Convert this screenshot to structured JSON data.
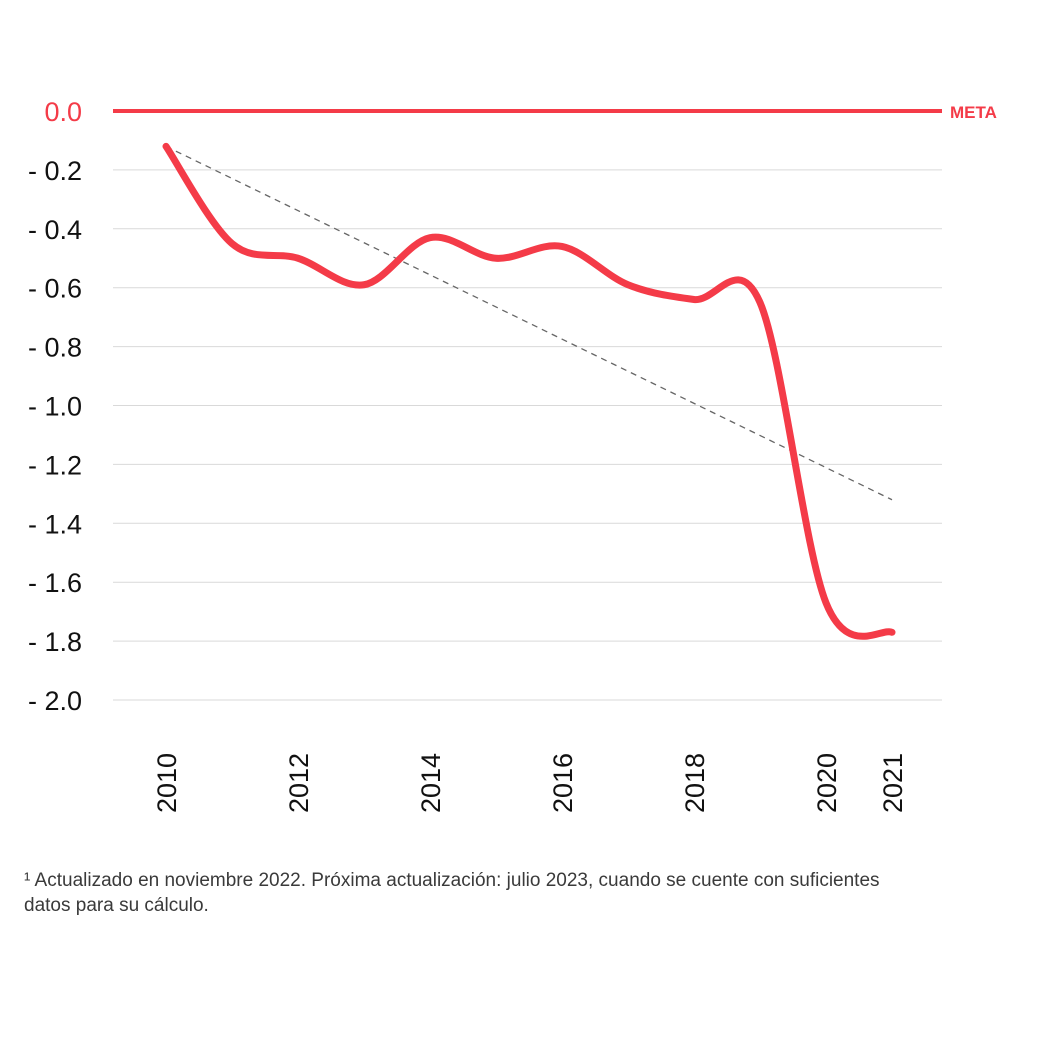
{
  "chart_data": {
    "type": "line",
    "title": "",
    "xlabel": "",
    "ylabel": "",
    "ylim": [
      -2.0,
      0.0
    ],
    "yticks": [
      0.0,
      -0.2,
      -0.4,
      -0.6,
      -0.8,
      -1.0,
      -1.2,
      -1.4,
      -1.6,
      -1.8,
      -2.0
    ],
    "ytick_labels": [
      "0.0",
      "- 0.2",
      "- 0.4",
      "- 0.6",
      "- 0.8",
      "- 1.0",
      "- 1.2",
      "- 1.4",
      "- 1.6",
      "- 1.8",
      "- 2.0"
    ],
    "xticks": [
      2010,
      2012,
      2014,
      2016,
      2018,
      2020,
      2021
    ],
    "xtick_labels": [
      "2010",
      "2012",
      "2014",
      "2016",
      "2018",
      "2020",
      "2021"
    ],
    "grid": true,
    "series": [
      {
        "values": [
          {
            "x": 2010,
            "y": -0.12
          },
          {
            "x": 2011,
            "y": -0.45
          },
          {
            "x": 2012,
            "y": -0.5
          },
          {
            "x": 2013,
            "y": -0.59
          },
          {
            "x": 2014,
            "y": -0.43
          },
          {
            "x": 2015,
            "y": -0.5
          },
          {
            "x": 2016,
            "y": -0.46
          },
          {
            "x": 2017,
            "y": -0.59
          },
          {
            "x": 2018,
            "y": -0.64
          },
          {
            "x": 2019,
            "y": -0.65
          },
          {
            "x": 2020,
            "y": -1.67
          },
          {
            "x": 2021,
            "y": -1.77
          }
        ],
        "color": "#f43b48"
      }
    ],
    "trendline": {
      "start": {
        "x": 2010,
        "y": -0.12
      },
      "end": {
        "x": 2021,
        "y": -1.32
      },
      "color": "#666666",
      "style": "dashed"
    },
    "target_line": {
      "y": 0.0,
      "label": "META",
      "color": "#f43b48"
    }
  },
  "footnote": "¹ Actualizado en noviembre 2022. Próxima actualización: julio 2023, cuando se cuente con suficientes datos para su cálculo."
}
